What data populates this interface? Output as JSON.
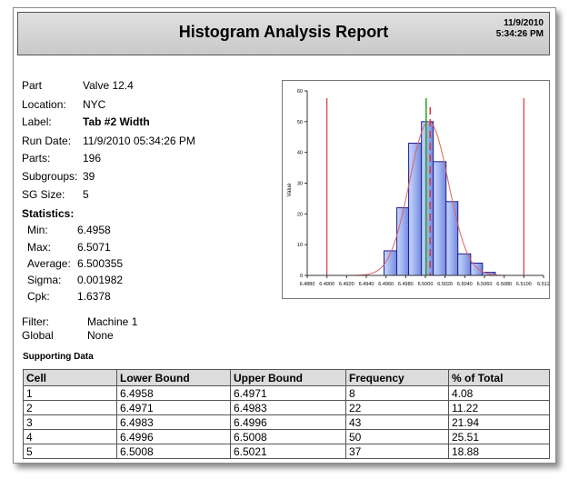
{
  "header": {
    "title": "Histogram Analysis Report",
    "date": "11/9/2010",
    "time": "5:34:26 PM"
  },
  "info": [
    {
      "label": "Part",
      "value": "Valve 12.4"
    },
    {
      "label": "Location:",
      "value": "NYC"
    },
    {
      "label": "Label:",
      "value": "Tab #2 Width"
    },
    {
      "label": "Run Date:",
      "value": "11/9/2010 05:34:26 PM"
    },
    {
      "label": "Parts:",
      "value": "196"
    },
    {
      "label": "Subgroups:",
      "value": "39"
    },
    {
      "label": "SG Size:",
      "value": "5"
    }
  ],
  "statistics": {
    "heading": "Statistics:",
    "items": [
      {
        "label": "Min:",
        "value": "6.4958"
      },
      {
        "label": "Max:",
        "value": "6.5071"
      },
      {
        "label": "Average:",
        "value": "6.500355"
      },
      {
        "label": "Sigma:",
        "value": "0.001982"
      },
      {
        "label": "Cpk:",
        "value": "1.6378"
      }
    ]
  },
  "filter": [
    {
      "label": "Filter:",
      "value": "Machine 1"
    },
    {
      "label": "Global",
      "value": "None"
    }
  ],
  "supporting": {
    "title": "Supporting Data",
    "headers": [
      "Cell",
      "Lower Bound",
      "Upper Bound",
      "Frequency",
      "% of Total"
    ],
    "rows": [
      [
        "1",
        "6.4958",
        "6.4971",
        "8",
        "4.08"
      ],
      [
        "2",
        "6.4971",
        "6.4983",
        "22",
        "11.22"
      ],
      [
        "3",
        "6.4983",
        "6.4996",
        "43",
        "21.94"
      ],
      [
        "4",
        "6.4996",
        "6.5008",
        "50",
        "25.51"
      ],
      [
        "5",
        "6.5008",
        "6.5021",
        "37",
        "18.88"
      ]
    ]
  },
  "chart_data": {
    "type": "bar",
    "ylabel": "Value",
    "xlim": [
      6.488,
      6.512
    ],
    "ylim": [
      0,
      60
    ],
    "x_ticks": [
      "6.4880",
      "6.4900",
      "6.4920",
      "6.4940",
      "6.4960",
      "6.4980",
      "6.5000",
      "6.5020",
      "6.5040",
      "6.5060",
      "6.5080",
      "6.5100",
      "6.512"
    ],
    "y_ticks": [
      "0",
      "10",
      "20",
      "30",
      "40",
      "50",
      "60"
    ],
    "bins": [
      {
        "lower": 6.4958,
        "upper": 6.4971,
        "value": 8
      },
      {
        "lower": 6.4971,
        "upper": 6.4983,
        "value": 22
      },
      {
        "lower": 6.4983,
        "upper": 6.4996,
        "value": 43
      },
      {
        "lower": 6.4996,
        "upper": 6.5008,
        "value": 50
      },
      {
        "lower": 6.5008,
        "upper": 6.5021,
        "value": 37
      },
      {
        "lower": 6.5021,
        "upper": 6.5033,
        "value": 24
      },
      {
        "lower": 6.5033,
        "upper": 6.5046,
        "value": 7
      },
      {
        "lower": 6.5046,
        "upper": 6.5058,
        "value": 4
      },
      {
        "lower": 6.5058,
        "upper": 6.5071,
        "value": 1
      }
    ],
    "spec_limits": [
      6.49,
      6.51
    ],
    "mean": 6.500355,
    "sigma": 0.001982,
    "center_line": 6.5003,
    "colors": {
      "bar": "#9fb3ef",
      "bar_edge": "#1f1f8f",
      "curve": "#e06060",
      "limit": "#d23b3b",
      "mean": "#22a022",
      "center": "#d23b3b"
    }
  }
}
